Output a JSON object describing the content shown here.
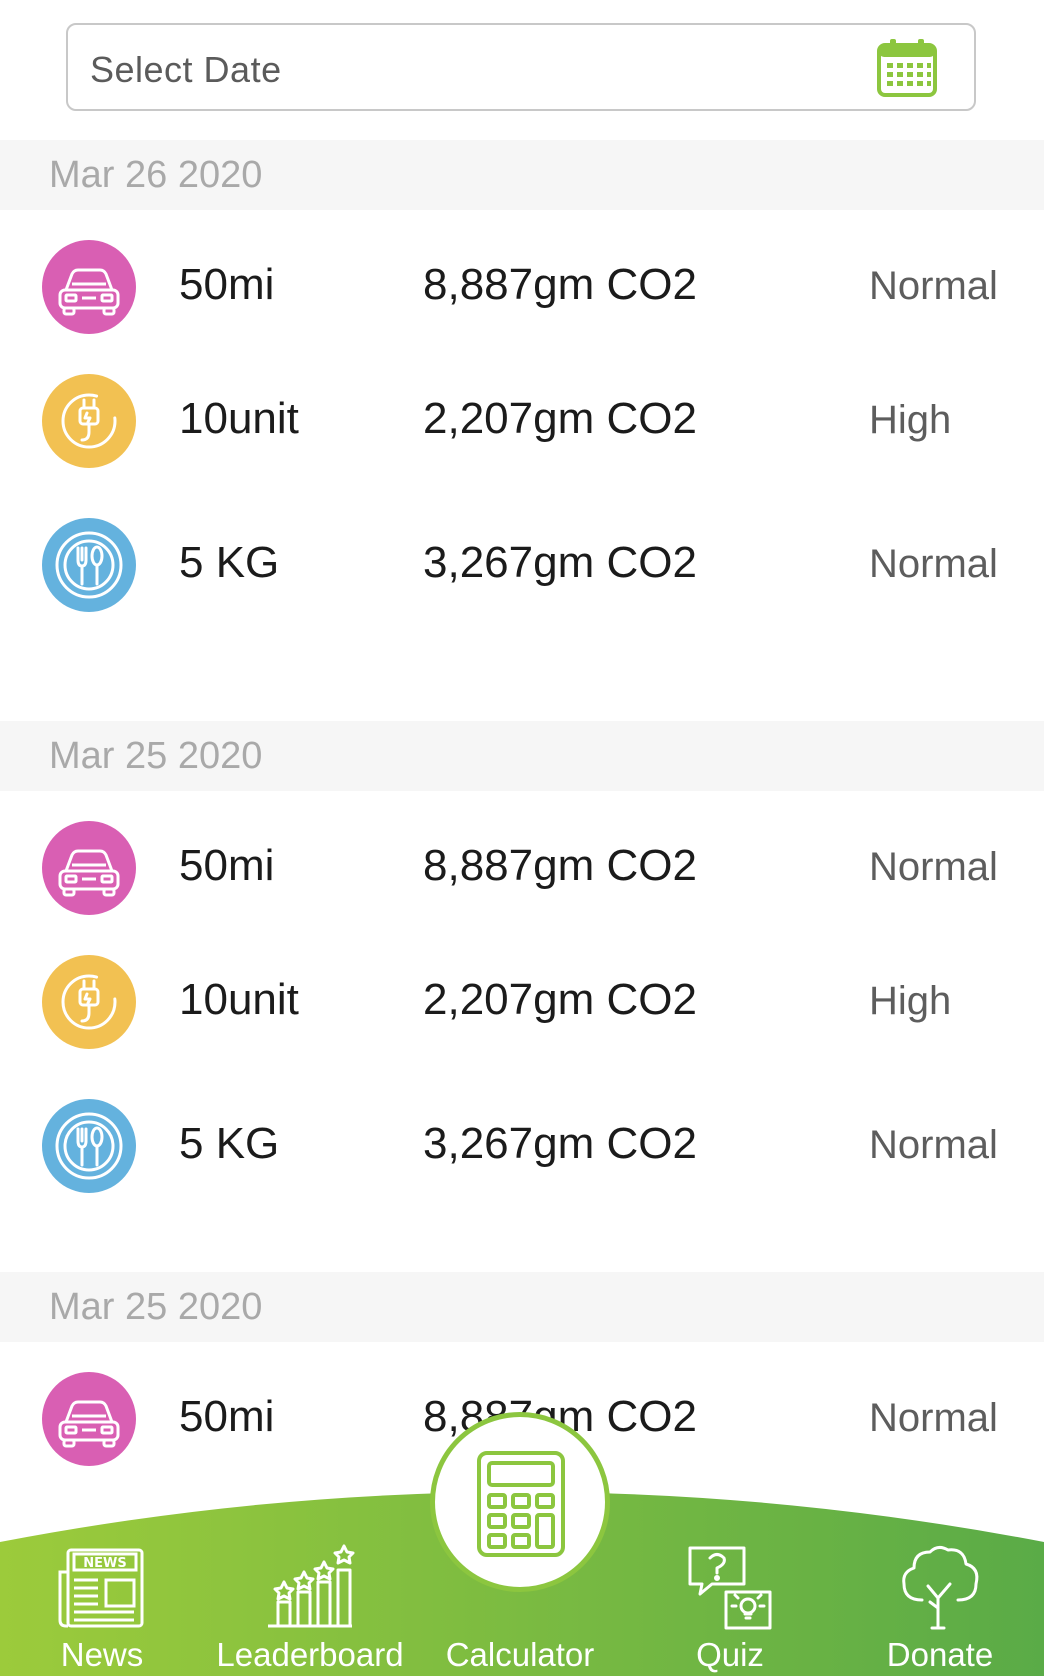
{
  "date_field": {
    "placeholder": "Select Date",
    "icon": "calendar-icon"
  },
  "sections": [
    {
      "date": "Mar 26 2020",
      "rows": [
        {
          "icon": "car-icon",
          "color": "#d95fb3",
          "qty": "50mi",
          "co2": "8,887gm CO2",
          "level": "Normal"
        },
        {
          "icon": "plug-icon",
          "color": "#f2c152",
          "qty": "10unit",
          "co2": "2,207gm CO2",
          "level": "High"
        },
        {
          "icon": "food-icon",
          "color": "#64b2de",
          "qty": "5 KG",
          "co2": "3,267gm CO2",
          "level": "Normal"
        }
      ]
    },
    {
      "date": "Mar 25 2020",
      "rows": [
        {
          "icon": "car-icon",
          "color": "#d95fb3",
          "qty": "50mi",
          "co2": "8,887gm CO2",
          "level": "Normal"
        },
        {
          "icon": "plug-icon",
          "color": "#f2c152",
          "qty": "10unit",
          "co2": "2,207gm CO2",
          "level": "High"
        },
        {
          "icon": "food-icon",
          "color": "#64b2de",
          "qty": "5 KG",
          "co2": "3,267gm CO2",
          "level": "Normal"
        }
      ]
    },
    {
      "date": "Mar 25 2020",
      "rows": [
        {
          "icon": "car-icon",
          "color": "#d95fb3",
          "qty": "50mi",
          "co2": "8,887gm CO2",
          "level": "Normal"
        }
      ]
    }
  ],
  "nav": {
    "items": [
      {
        "label": "News",
        "icon": "news-icon"
      },
      {
        "label": "Leaderboard",
        "icon": "leaderboard-icon"
      },
      {
        "label": "Calculator",
        "icon": "calculator-icon"
      },
      {
        "label": "Quiz",
        "icon": "quiz-icon"
      },
      {
        "label": "Donate",
        "icon": "tree-icon"
      }
    ],
    "accent": "#8cc63f",
    "gradient_end": "#5aab47"
  }
}
